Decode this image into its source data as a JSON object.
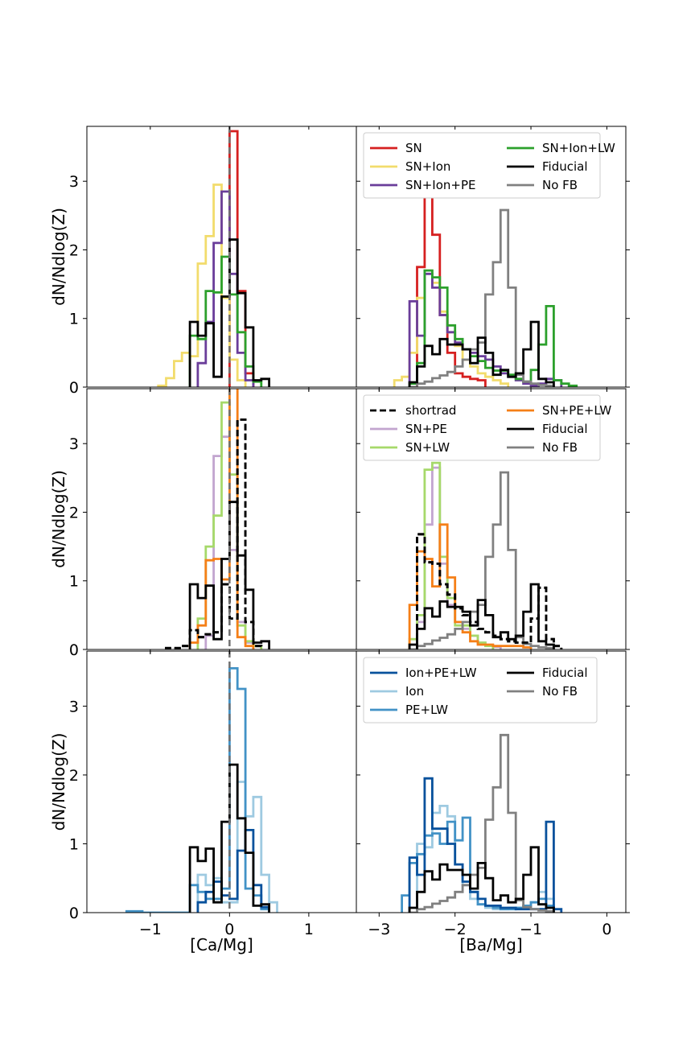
{
  "chart_data": {
    "type": "histogram",
    "ylabel": "dN/Ndlog(Z)",
    "left_xlabel": "[Ca/Mg]",
    "right_xlabel": "[Ba/Mg]",
    "left_xlim": [
      -1.8,
      1.6
    ],
    "right_xlim": [
      -3.3,
      0.25
    ],
    "ylim": [
      0,
      3.8
    ],
    "left_xticks": [
      -1,
      0,
      1
    ],
    "right_xticks": [
      -3,
      -2,
      -1,
      0
    ],
    "yticks": [
      0,
      1,
      2,
      3
    ],
    "reference_line": {
      "x": 0,
      "style": "dashed",
      "color": "#707070"
    },
    "common": {
      "Fiducial": {
        "ca": {
          "start": -0.5,
          "width": 0.1,
          "values": [
            0.95,
            0.75,
            0.93,
            0.15,
            1.32,
            2.15,
            1.37,
            0.87,
            0.1,
            0.12
          ]
        },
        "ba": {
          "start": -2.6,
          "width": 0.1,
          "values": [
            0.07,
            0.3,
            0.6,
            0.48,
            0.7,
            0.62,
            0.62,
            0.55,
            0.35,
            0.72,
            0.5,
            0.18,
            0.25,
            0.15,
            0.2,
            0.55,
            0.95,
            0.12,
            0.07
          ]
        }
      },
      "No FB": {
        "ba": {
          "start": -2.6,
          "width": 0.1,
          "values": [
            0.0,
            0.05,
            0.08,
            0.13,
            0.17,
            0.22,
            0.3,
            0.4,
            0.55,
            0.65,
            1.35,
            1.82,
            2.58,
            1.45,
            0.18,
            0.08,
            0.05,
            0.03,
            0.02
          ]
        }
      }
    },
    "panels": [
      {
        "name": "row1",
        "legend": [
          "SN",
          "SN+Ion",
          "SN+Ion+PE",
          "SN+Ion+LW",
          "Fiducial",
          "No FB"
        ],
        "series": [
          {
            "name": "SN",
            "color": "#d62020",
            "ca": {
              "start": 0.0,
              "width": 0.1,
              "values": [
                3.73,
                1.4,
                0.2
              ]
            },
            "ba": {
              "start": -2.5,
              "width": 0.1,
              "values": [
                1.75,
                3.08,
                2.22,
                1.05,
                0.5,
                0.2,
                0.15,
                0.12,
                0.1
              ]
            }
          },
          {
            "name": "SN+Ion",
            "color": "#f2dc6c",
            "ca": {
              "start": -0.9,
              "width": 0.1,
              "values": [
                0.02,
                0.13,
                0.38,
                0.5,
                0.45,
                1.8,
                2.2,
                2.95,
                1.3,
                0.4,
                0.1
              ]
            },
            "ba": {
              "start": -2.8,
              "width": 0.1,
              "values": [
                0.1,
                0.15,
                0.5,
                1.3,
                1.7,
                1.52,
                1.1,
                0.8,
                0.6,
                0.4,
                0.3,
                0.2,
                0.15,
                0.1,
                0.05
              ]
            }
          },
          {
            "name": "SN+Ion+PE",
            "color": "#6a3d9a",
            "ca": {
              "start": -0.4,
              "width": 0.1,
              "values": [
                0.35,
                0.95,
                2.1,
                2.85,
                1.65,
                0.5,
                0.1
              ]
            },
            "ba": {
              "start": -2.6,
              "width": 0.1,
              "values": [
                1.25,
                0.75,
                1.65,
                1.45,
                1.05,
                0.8,
                0.65,
                0.55,
                0.5,
                0.45,
                0.4,
                0.3,
                0.2,
                0.15,
                0.1,
                0.05,
                0.02,
                0.05,
                0.12,
                0.1
              ]
            }
          },
          {
            "name": "SN+Ion+LW",
            "color": "#2ca02c",
            "ca": {
              "start": -0.5,
              "width": 0.1,
              "values": [
                0.75,
                0.7,
                1.4,
                1.38,
                1.9,
                1.35,
                0.8,
                0.3,
                0.08
              ]
            },
            "ba": {
              "start": -2.6,
              "width": 0.1,
              "values": [
                0.05,
                0.35,
                1.7,
                1.6,
                1.45,
                0.9,
                0.7,
                0.55,
                0.45,
                0.38,
                0.28,
                0.24,
                0.24,
                0.18,
                0.12,
                0.08,
                0.25,
                0.62,
                1.18,
                0.1,
                0.05,
                0.02
              ]
            }
          }
        ],
        "overlay": [
          "Fiducial",
          "No FB"
        ]
      },
      {
        "name": "row2",
        "legend": [
          "shortrad",
          "SN+PE",
          "SN+LW",
          "SN+PE+LW",
          "Fiducial",
          "No FB"
        ],
        "series": [
          {
            "name": "SN+PE",
            "color": "#c2a5cf",
            "ca": {
              "start": -0.3,
              "width": 0.1,
              "values": [
                0.2,
                2.82,
                3.1,
                1.45,
                0.4,
                0.1
              ]
            },
            "ba": {
              "start": -2.5,
              "width": 0.1,
              "values": [
                0.4,
                1.82,
                2.65,
                1.25,
                0.65,
                0.4,
                0.3,
                0.2,
                0.1,
                0.06,
                0.04
              ]
            }
          },
          {
            "name": "SN+LW",
            "color": "#a6d96a",
            "ca": {
              "start": -0.4,
              "width": 0.1,
              "values": [
                0.45,
                1.5,
                1.95,
                3.6,
                2.55,
                0.35,
                0.12,
                0.05
              ]
            },
            "ba": {
              "start": -2.6,
              "width": 0.1,
              "values": [
                0.15,
                0.5,
                2.62,
                2.72,
                1.35,
                0.75,
                0.35,
                0.35,
                0.2,
                0.1,
                0.05
              ]
            }
          },
          {
            "name": "SN+PE+LW",
            "color": "#f57f17",
            "ca": {
              "start": -0.5,
              "width": 0.1,
              "values": [
                0.1,
                0.35,
                1.3,
                1.32,
                1.02,
                3.85,
                0.18,
                0.05
              ]
            },
            "ba": {
              "start": -2.6,
              "width": 0.1,
              "values": [
                0.65,
                1.43,
                1.32,
                0.92,
                1.82,
                1.05,
                0.4,
                0.25,
                0.12,
                0.07,
                0.07,
                0.05,
                0.05,
                0.05,
                0.05,
                0.03
              ]
            }
          },
          {
            "name": "shortrad",
            "color": "#000000",
            "dashed": true,
            "ca": {
              "start": -0.8,
              "width": 0.1,
              "values": [
                0.02,
                0.02,
                0.05,
                0.28,
                0.18,
                0.22,
                0.25,
                0.95,
                0.45,
                3.35,
                0.4,
                0.05
              ]
            },
            "ba": {
              "start": -2.5,
              "width": 0.1,
              "values": [
                1.68,
                1.27,
                1.25,
                0.95,
                0.8,
                0.6,
                0.5,
                0.4,
                0.3,
                0.25,
                0.2,
                0.15,
                0.12,
                0.1,
                0.1,
                0.45,
                0.9,
                0.15,
                0.05
              ]
            }
          }
        ],
        "overlay": [
          "Fiducial",
          "No FB"
        ]
      },
      {
        "name": "row3",
        "legend": [
          "Ion+PE+LW",
          "Ion",
          "PE+LW",
          "Fiducial",
          "No FB"
        ],
        "series": [
          {
            "name": "Ion",
            "color": "#9ecae1",
            "ca": {
              "start": -0.4,
              "width": 0.1,
              "values": [
                0.55,
                0.4,
                0.5,
                0.15,
                0.15,
                1.9,
                1.4,
                1.68,
                0.55,
                0.15
              ]
            },
            "ba": {
              "start": -2.5,
              "width": 0.1,
              "values": [
                1.0,
                0.95,
                1.45,
                1.55,
                1.4,
                0.7,
                0.4,
                0.2,
                0.12,
                0.07,
                0.05,
                0.05,
                0.07,
                0.07,
                0.1,
                0.15,
                0.3,
                0.2
              ]
            }
          },
          {
            "name": "PE+LW",
            "color": "#4292c6",
            "ca": {
              "start": -1.3,
              "width": 0.1,
              "values": [
                0.02,
                0.02,
                0.0,
                0.0,
                0.0,
                0.0,
                0.0,
                0.0,
                0.4,
                0.3,
                0.2,
                0.2,
                0.35,
                3.55,
                3.25,
                0.35,
                0.25,
                0.05
              ]
            },
            "ba": {
              "start": -2.7,
              "width": 0.1,
              "values": [
                0.25,
                0.72,
                0.85,
                1.12,
                1.15,
                1.0,
                1.32,
                1.05,
                1.38,
                0.3,
                0.12,
                0.1,
                0.07,
                0.05,
                0.05,
                0.07,
                0.1,
                0.15,
                0.2,
                0.1
              ]
            }
          },
          {
            "name": "Ion+PE+LW",
            "color": "#08519c",
            "ca": {
              "start": -0.4,
              "width": 0.1,
              "values": [
                0.15,
                0.3,
                0.45,
                0.25,
                0.2,
                0.9,
                1.2,
                0.4,
                0.08
              ]
            },
            "ba": {
              "start": -2.6,
              "width": 0.1,
              "values": [
                0.8,
                0.55,
                1.95,
                1.22,
                1.22,
                1.0,
                0.7,
                0.45,
                0.3,
                0.2,
                0.1,
                0.1,
                0.07,
                0.07,
                0.05,
                0.05,
                0.05,
                0.05,
                1.32,
                0.05
              ]
            }
          }
        ],
        "overlay": [
          "Fiducial",
          "No FB"
        ]
      }
    ],
    "colors": {
      "Fiducial": "#000000",
      "No FB": "#808080"
    }
  }
}
